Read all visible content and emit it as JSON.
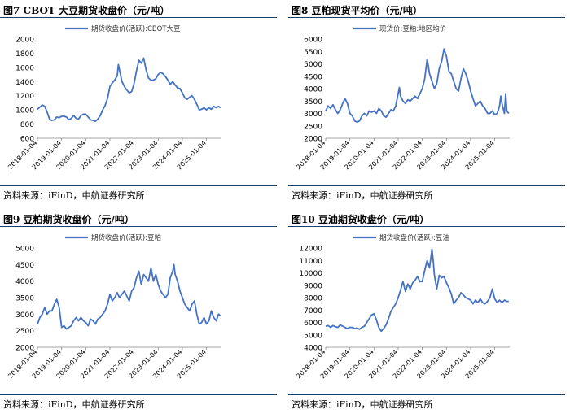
{
  "chart_data": [
    {
      "type": "line",
      "title": "图7  CBOT 大豆期货收盘价（元/吨）",
      "source": "资料来源：iFinD，中航证券研究所",
      "legend": "期货收盘价(活跃):CBOT大豆",
      "color": "#4472c4",
      "ylim": [
        600,
        2000
      ],
      "yticks": [
        "600",
        "800",
        "1000",
        "1200",
        "1400",
        "1600",
        "1800",
        "2000"
      ],
      "xlim": [
        2018.0,
        2025.62
      ],
      "xticks": [
        "2018-01-04",
        "2019-01-04",
        "2020-01-04",
        "2021-01-04",
        "2022-01-04",
        "2023-01-04",
        "2024-01-04",
        "2025-01-04"
      ],
      "points": [
        [
          2018.0,
          1010
        ],
        [
          2018.1,
          1040
        ],
        [
          2018.2,
          1070
        ],
        [
          2018.3,
          1050
        ],
        [
          2018.4,
          970
        ],
        [
          2018.5,
          870
        ],
        [
          2018.6,
          850
        ],
        [
          2018.7,
          860
        ],
        [
          2018.8,
          900
        ],
        [
          2018.9,
          890
        ],
        [
          2019.0,
          910
        ],
        [
          2019.1,
          910
        ],
        [
          2019.2,
          900
        ],
        [
          2019.3,
          860
        ],
        [
          2019.4,
          880
        ],
        [
          2019.5,
          920
        ],
        [
          2019.6,
          880
        ],
        [
          2019.7,
          870
        ],
        [
          2019.8,
          920
        ],
        [
          2019.9,
          940
        ],
        [
          2020.0,
          940
        ],
        [
          2020.1,
          900
        ],
        [
          2020.2,
          860
        ],
        [
          2020.3,
          850
        ],
        [
          2020.4,
          840
        ],
        [
          2020.5,
          870
        ],
        [
          2020.6,
          920
        ],
        [
          2020.7,
          1000
        ],
        [
          2020.8,
          1060
        ],
        [
          2020.9,
          1160
        ],
        [
          2021.0,
          1330
        ],
        [
          2021.1,
          1380
        ],
        [
          2021.2,
          1420
        ],
        [
          2021.3,
          1480
        ],
        [
          2021.35,
          1640
        ],
        [
          2021.4,
          1560
        ],
        [
          2021.5,
          1400
        ],
        [
          2021.6,
          1330
        ],
        [
          2021.7,
          1280
        ],
        [
          2021.8,
          1240
        ],
        [
          2021.9,
          1260
        ],
        [
          2022.0,
          1370
        ],
        [
          2022.1,
          1550
        ],
        [
          2022.2,
          1700
        ],
        [
          2022.3,
          1660
        ],
        [
          2022.4,
          1730
        ],
        [
          2022.5,
          1560
        ],
        [
          2022.6,
          1450
        ],
        [
          2022.7,
          1420
        ],
        [
          2022.8,
          1420
        ],
        [
          2022.9,
          1440
        ],
        [
          2023.0,
          1500
        ],
        [
          2023.1,
          1530
        ],
        [
          2023.2,
          1510
        ],
        [
          2023.3,
          1470
        ],
        [
          2023.4,
          1420
        ],
        [
          2023.5,
          1360
        ],
        [
          2023.6,
          1400
        ],
        [
          2023.7,
          1350
        ],
        [
          2023.8,
          1310
        ],
        [
          2023.9,
          1300
        ],
        [
          2024.0,
          1240
        ],
        [
          2024.1,
          1170
        ],
        [
          2024.2,
          1150
        ],
        [
          2024.3,
          1180
        ],
        [
          2024.4,
          1200
        ],
        [
          2024.5,
          1150
        ],
        [
          2024.6,
          1080
        ],
        [
          2024.7,
          1000
        ],
        [
          2024.8,
          1010
        ],
        [
          2024.9,
          1030
        ],
        [
          2025.0,
          1000
        ],
        [
          2025.1,
          1030
        ],
        [
          2025.2,
          1010
        ],
        [
          2025.3,
          1050
        ],
        [
          2025.4,
          1030
        ],
        [
          2025.5,
          1050
        ],
        [
          2025.58,
          1030
        ]
      ]
    },
    {
      "type": "line",
      "title": "图8  豆粕现货平均价（元/吨）",
      "source": "资料来源：iFinD，中航证券研究所",
      "legend": "现货价:豆粕:地区均价",
      "color": "#4472c4",
      "ylim": [
        2000,
        6000
      ],
      "yticks": [
        "2000",
        "2500",
        "3000",
        "3500",
        "4000",
        "4500",
        "5000",
        "5500",
        "6000"
      ],
      "xlim": [
        2018.0,
        2025.62
      ],
      "xticks": [
        "2018-01-04",
        "2019-01-04",
        "2020-01-04",
        "2021-01-04",
        "2022-01-04",
        "2023-01-04",
        "2024-01-04",
        "2025-01-04"
      ],
      "points": [
        [
          2018.0,
          3100
        ],
        [
          2018.1,
          3300
        ],
        [
          2018.2,
          3200
        ],
        [
          2018.3,
          3350
        ],
        [
          2018.4,
          3150
        ],
        [
          2018.5,
          3000
        ],
        [
          2018.6,
          3150
        ],
        [
          2018.7,
          3400
        ],
        [
          2018.8,
          3600
        ],
        [
          2018.9,
          3400
        ],
        [
          2019.0,
          3000
        ],
        [
          2019.1,
          2900
        ],
        [
          2019.2,
          2700
        ],
        [
          2019.3,
          2650
        ],
        [
          2019.4,
          2700
        ],
        [
          2019.5,
          2900
        ],
        [
          2019.6,
          3000
        ],
        [
          2019.7,
          2900
        ],
        [
          2019.8,
          3100
        ],
        [
          2019.9,
          3050
        ],
        [
          2020.0,
          3100
        ],
        [
          2020.1,
          3000
        ],
        [
          2020.2,
          3200
        ],
        [
          2020.3,
          3100
        ],
        [
          2020.4,
          2900
        ],
        [
          2020.5,
          2850
        ],
        [
          2020.6,
          3000
        ],
        [
          2020.7,
          3150
        ],
        [
          2020.8,
          3100
        ],
        [
          2020.9,
          3300
        ],
        [
          2021.0,
          3800
        ],
        [
          2021.05,
          4050
        ],
        [
          2021.1,
          3700
        ],
        [
          2021.2,
          3500
        ],
        [
          2021.3,
          3400
        ],
        [
          2021.4,
          3550
        ],
        [
          2021.5,
          3500
        ],
        [
          2021.6,
          3600
        ],
        [
          2021.7,
          3700
        ],
        [
          2021.8,
          3600
        ],
        [
          2021.9,
          3800
        ],
        [
          2022.0,
          4000
        ],
        [
          2022.1,
          4400
        ],
        [
          2022.2,
          5200
        ],
        [
          2022.3,
          4600
        ],
        [
          2022.4,
          4300
        ],
        [
          2022.5,
          4000
        ],
        [
          2022.6,
          4200
        ],
        [
          2022.7,
          4800
        ],
        [
          2022.8,
          5100
        ],
        [
          2022.9,
          5600
        ],
        [
          2023.0,
          5300
        ],
        [
          2023.1,
          4700
        ],
        [
          2023.2,
          4600
        ],
        [
          2023.3,
          4300
        ],
        [
          2023.4,
          4000
        ],
        [
          2023.5,
          3900
        ],
        [
          2023.6,
          4400
        ],
        [
          2023.7,
          4800
        ],
        [
          2023.8,
          4600
        ],
        [
          2023.9,
          4300
        ],
        [
          2024.0,
          3900
        ],
        [
          2024.1,
          3600
        ],
        [
          2024.2,
          3300
        ],
        [
          2024.3,
          3400
        ],
        [
          2024.4,
          3500
        ],
        [
          2024.5,
          3300
        ],
        [
          2024.6,
          3200
        ],
        [
          2024.7,
          3000
        ],
        [
          2024.8,
          3000
        ],
        [
          2024.9,
          3100
        ],
        [
          2025.0,
          2950
        ],
        [
          2025.1,
          3000
        ],
        [
          2025.2,
          3300
        ],
        [
          2025.25,
          3700
        ],
        [
          2025.3,
          3400
        ],
        [
          2025.4,
          3000
        ],
        [
          2025.45,
          3800
        ],
        [
          2025.5,
          3100
        ],
        [
          2025.58,
          3000
        ]
      ]
    },
    {
      "type": "line",
      "title": "图9  豆粕期货收盘价（元/吨）",
      "source": "资料来源：iFinD，中航证券研究所",
      "legend": "期货收盘价(活跃):豆粕",
      "color": "#4472c4",
      "ylim": [
        2000,
        5000
      ],
      "yticks": [
        "2000",
        "2500",
        "3000",
        "3500",
        "4000",
        "4500",
        "5000"
      ],
      "xlim": [
        2018.0,
        2025.62
      ],
      "xticks": [
        "2018-01-04",
        "2019-01-04",
        "2020-01-04",
        "2021-01-04",
        "2022-01-04",
        "2023-01-04",
        "2024-01-04",
        "2025-01-04"
      ],
      "points": [
        [
          2018.0,
          2700
        ],
        [
          2018.1,
          2900
        ],
        [
          2018.2,
          3000
        ],
        [
          2018.3,
          3200
        ],
        [
          2018.4,
          3000
        ],
        [
          2018.5,
          3100
        ],
        [
          2018.6,
          3100
        ],
        [
          2018.7,
          3300
        ],
        [
          2018.8,
          3450
        ],
        [
          2018.9,
          3200
        ],
        [
          2019.0,
          2600
        ],
        [
          2019.1,
          2650
        ],
        [
          2019.2,
          2550
        ],
        [
          2019.3,
          2600
        ],
        [
          2019.4,
          2650
        ],
        [
          2019.5,
          2800
        ],
        [
          2019.6,
          2900
        ],
        [
          2019.7,
          2800
        ],
        [
          2019.8,
          2900
        ],
        [
          2019.9,
          2800
        ],
        [
          2020.0,
          2750
        ],
        [
          2020.1,
          2650
        ],
        [
          2020.2,
          2850
        ],
        [
          2020.3,
          2800
        ],
        [
          2020.4,
          2700
        ],
        [
          2020.5,
          2850
        ],
        [
          2020.6,
          2900
        ],
        [
          2020.7,
          3000
        ],
        [
          2020.8,
          3100
        ],
        [
          2020.9,
          3300
        ],
        [
          2021.0,
          3600
        ],
        [
          2021.1,
          3400
        ],
        [
          2021.2,
          3500
        ],
        [
          2021.3,
          3650
        ],
        [
          2021.4,
          3500
        ],
        [
          2021.5,
          3600
        ],
        [
          2021.6,
          3700
        ],
        [
          2021.7,
          3550
        ],
        [
          2021.8,
          3400
        ],
        [
          2021.9,
          3700
        ],
        [
          2022.0,
          3800
        ],
        [
          2022.1,
          4100
        ],
        [
          2022.2,
          4300
        ],
        [
          2022.3,
          3900
        ],
        [
          2022.4,
          4200
        ],
        [
          2022.5,
          4100
        ],
        [
          2022.6,
          4000
        ],
        [
          2022.7,
          4400
        ],
        [
          2022.8,
          4000
        ],
        [
          2022.9,
          4200
        ],
        [
          2023.0,
          3900
        ],
        [
          2023.1,
          3700
        ],
        [
          2023.2,
          3600
        ],
        [
          2023.3,
          3500
        ],
        [
          2023.4,
          3600
        ],
        [
          2023.5,
          4100
        ],
        [
          2023.6,
          4300
        ],
        [
          2023.65,
          4500
        ],
        [
          2023.7,
          4200
        ],
        [
          2023.8,
          4000
        ],
        [
          2023.9,
          3700
        ],
        [
          2024.0,
          3500
        ],
        [
          2024.1,
          3300
        ],
        [
          2024.2,
          3200
        ],
        [
          2024.3,
          3100
        ],
        [
          2024.4,
          3300
        ],
        [
          2024.5,
          3400
        ],
        [
          2024.6,
          3000
        ],
        [
          2024.7,
          2700
        ],
        [
          2024.8,
          2750
        ],
        [
          2024.9,
          2900
        ],
        [
          2025.0,
          2700
        ],
        [
          2025.1,
          2800
        ],
        [
          2025.2,
          3100
        ],
        [
          2025.3,
          2900
        ],
        [
          2025.4,
          2800
        ],
        [
          2025.5,
          3000
        ],
        [
          2025.58,
          2950
        ]
      ]
    },
    {
      "type": "line",
      "title": "图10  豆油期货收盘价（元/吨）",
      "source": "资料来源：iFinD，中航证券研究所",
      "legend": "期货收盘价(活跃):豆油",
      "color": "#4472c4",
      "ylim": [
        4000,
        12000
      ],
      "yticks": [
        "4000",
        "5000",
        "6000",
        "7000",
        "8000",
        "9000",
        "10000",
        "11000",
        "12000"
      ],
      "xlim": [
        2018.0,
        2025.62
      ],
      "xticks": [
        "2018-01-04",
        "2019-01-04",
        "2020-01-04",
        "2021-01-04",
        "2022-01-04",
        "2023-01-04",
        "2024-01-04",
        "2025-01-04"
      ],
      "points": [
        [
          2018.0,
          5700
        ],
        [
          2018.1,
          5750
        ],
        [
          2018.2,
          5600
        ],
        [
          2018.3,
          5750
        ],
        [
          2018.4,
          5650
        ],
        [
          2018.5,
          5600
        ],
        [
          2018.6,
          5800
        ],
        [
          2018.7,
          5700
        ],
        [
          2018.8,
          5600
        ],
        [
          2018.9,
          5500
        ],
        [
          2019.0,
          5600
        ],
        [
          2019.1,
          5600
        ],
        [
          2019.2,
          5500
        ],
        [
          2019.3,
          5550
        ],
        [
          2019.4,
          5450
        ],
        [
          2019.5,
          5600
        ],
        [
          2019.6,
          5700
        ],
        [
          2019.7,
          6000
        ],
        [
          2019.8,
          6300
        ],
        [
          2019.9,
          6600
        ],
        [
          2020.0,
          6700
        ],
        [
          2020.1,
          6200
        ],
        [
          2020.2,
          5600
        ],
        [
          2020.3,
          5300
        ],
        [
          2020.4,
          5500
        ],
        [
          2020.5,
          5800
        ],
        [
          2020.6,
          6300
        ],
        [
          2020.7,
          6900
        ],
        [
          2020.8,
          7200
        ],
        [
          2020.9,
          7500
        ],
        [
          2021.0,
          8000
        ],
        [
          2021.1,
          8600
        ],
        [
          2021.2,
          9300
        ],
        [
          2021.3,
          8500
        ],
        [
          2021.4,
          9100
        ],
        [
          2021.5,
          8700
        ],
        [
          2021.6,
          9200
        ],
        [
          2021.7,
          9400
        ],
        [
          2021.8,
          9700
        ],
        [
          2021.9,
          9300
        ],
        [
          2022.0,
          9300
        ],
        [
          2022.1,
          10200
        ],
        [
          2022.2,
          11000
        ],
        [
          2022.3,
          10400
        ],
        [
          2022.4,
          11900
        ],
        [
          2022.45,
          11000
        ],
        [
          2022.5,
          9800
        ],
        [
          2022.6,
          8700
        ],
        [
          2022.7,
          9800
        ],
        [
          2022.8,
          9600
        ],
        [
          2022.9,
          9700
        ],
        [
          2023.0,
          9200
        ],
        [
          2023.1,
          8800
        ],
        [
          2023.2,
          8300
        ],
        [
          2023.3,
          7500
        ],
        [
          2023.4,
          7800
        ],
        [
          2023.5,
          8000
        ],
        [
          2023.6,
          8400
        ],
        [
          2023.7,
          8200
        ],
        [
          2023.8,
          8000
        ],
        [
          2023.9,
          7900
        ],
        [
          2024.0,
          7800
        ],
        [
          2024.1,
          7500
        ],
        [
          2024.2,
          7800
        ],
        [
          2024.3,
          7600
        ],
        [
          2024.4,
          7900
        ],
        [
          2024.5,
          7600
        ],
        [
          2024.6,
          7500
        ],
        [
          2024.7,
          7700
        ],
        [
          2024.8,
          8000
        ],
        [
          2024.9,
          8700
        ],
        [
          2025.0,
          7900
        ],
        [
          2025.1,
          7600
        ],
        [
          2025.2,
          7800
        ],
        [
          2025.3,
          7600
        ],
        [
          2025.4,
          7800
        ],
        [
          2025.5,
          7700
        ],
        [
          2025.58,
          7700
        ]
      ]
    }
  ]
}
